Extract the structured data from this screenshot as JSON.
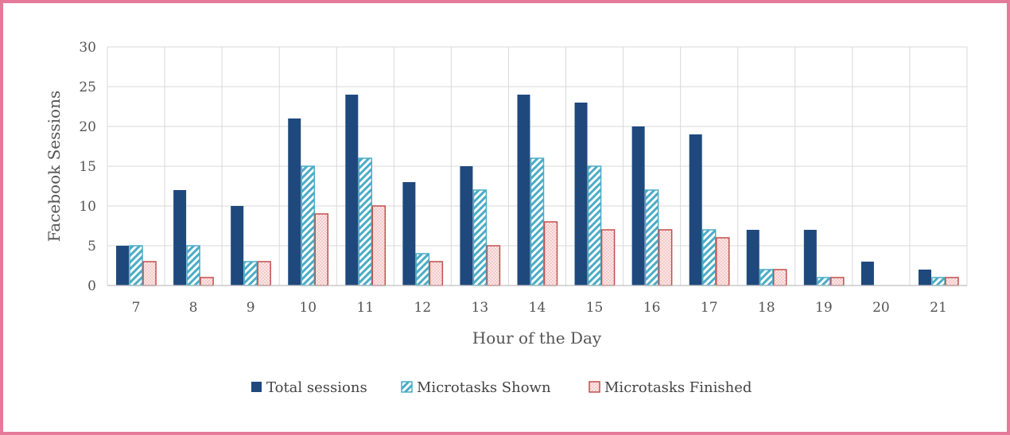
{
  "chart_data": {
    "type": "bar",
    "title": "",
    "xlabel": "Hour of the Day",
    "ylabel": "Facebook Sessions",
    "ylim": [
      0,
      30
    ],
    "yticks": [
      0,
      5,
      10,
      15,
      20,
      25,
      30
    ],
    "grid": true,
    "legend_position": "bottom",
    "categories": [
      "7",
      "8",
      "9",
      "10",
      "11",
      "12",
      "13",
      "14",
      "15",
      "16",
      "17",
      "18",
      "19",
      "20",
      "21"
    ],
    "series": [
      {
        "name": "Total sessions",
        "color": "#1f497d",
        "pattern": "solid",
        "values": [
          5,
          12,
          10,
          21,
          24,
          13,
          15,
          24,
          23,
          20,
          19,
          7,
          7,
          3,
          2
        ]
      },
      {
        "name": "Microtasks Shown",
        "color": "#4bacc6",
        "pattern": "diagonal-hatch",
        "values": [
          5,
          5,
          3,
          15,
          16,
          4,
          12,
          16,
          15,
          12,
          7,
          2,
          1,
          0,
          1
        ]
      },
      {
        "name": "Microtasks Finished",
        "color": "#c0504d",
        "pattern": "dotted",
        "values": [
          3,
          1,
          3,
          9,
          10,
          3,
          5,
          8,
          7,
          7,
          6,
          2,
          1,
          0,
          1
        ]
      }
    ]
  }
}
